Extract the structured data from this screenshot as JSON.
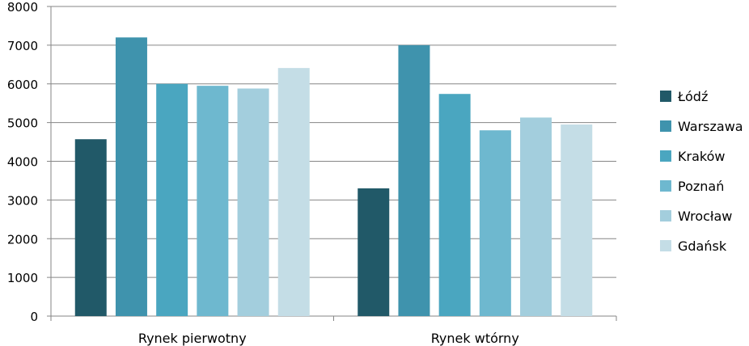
{
  "chart_data": {
    "type": "bar",
    "title": "",
    "xlabel": "",
    "ylabel": "",
    "categories": [
      "Rynek pierwotny",
      "Rynek wtórny"
    ],
    "ylim": [
      0,
      8000
    ],
    "yticks": [
      "0",
      "1000",
      "2000",
      "3000",
      "4000",
      "5000",
      "6000",
      "7000",
      "8000"
    ],
    "grid": true,
    "legend_position": "right",
    "series": [
      {
        "name": "Łódź",
        "color": "#215968",
        "values": [
          4570,
          3300
        ]
      },
      {
        "name": "Warszawa",
        "color": "#3f93ad",
        "values": [
          7200,
          7000
        ]
      },
      {
        "name": "Kraków",
        "color": "#4aa6c0",
        "values": [
          6000,
          5740
        ]
      },
      {
        "name": "Poznań",
        "color": "#6eb8cf",
        "values": [
          5950,
          4800
        ]
      },
      {
        "name": "Wrocław",
        "color": "#a3cedd",
        "values": [
          5880,
          5130
        ]
      },
      {
        "name": "Gdańsk",
        "color": "#c4dde6",
        "values": [
          6410,
          4950
        ]
      }
    ]
  }
}
